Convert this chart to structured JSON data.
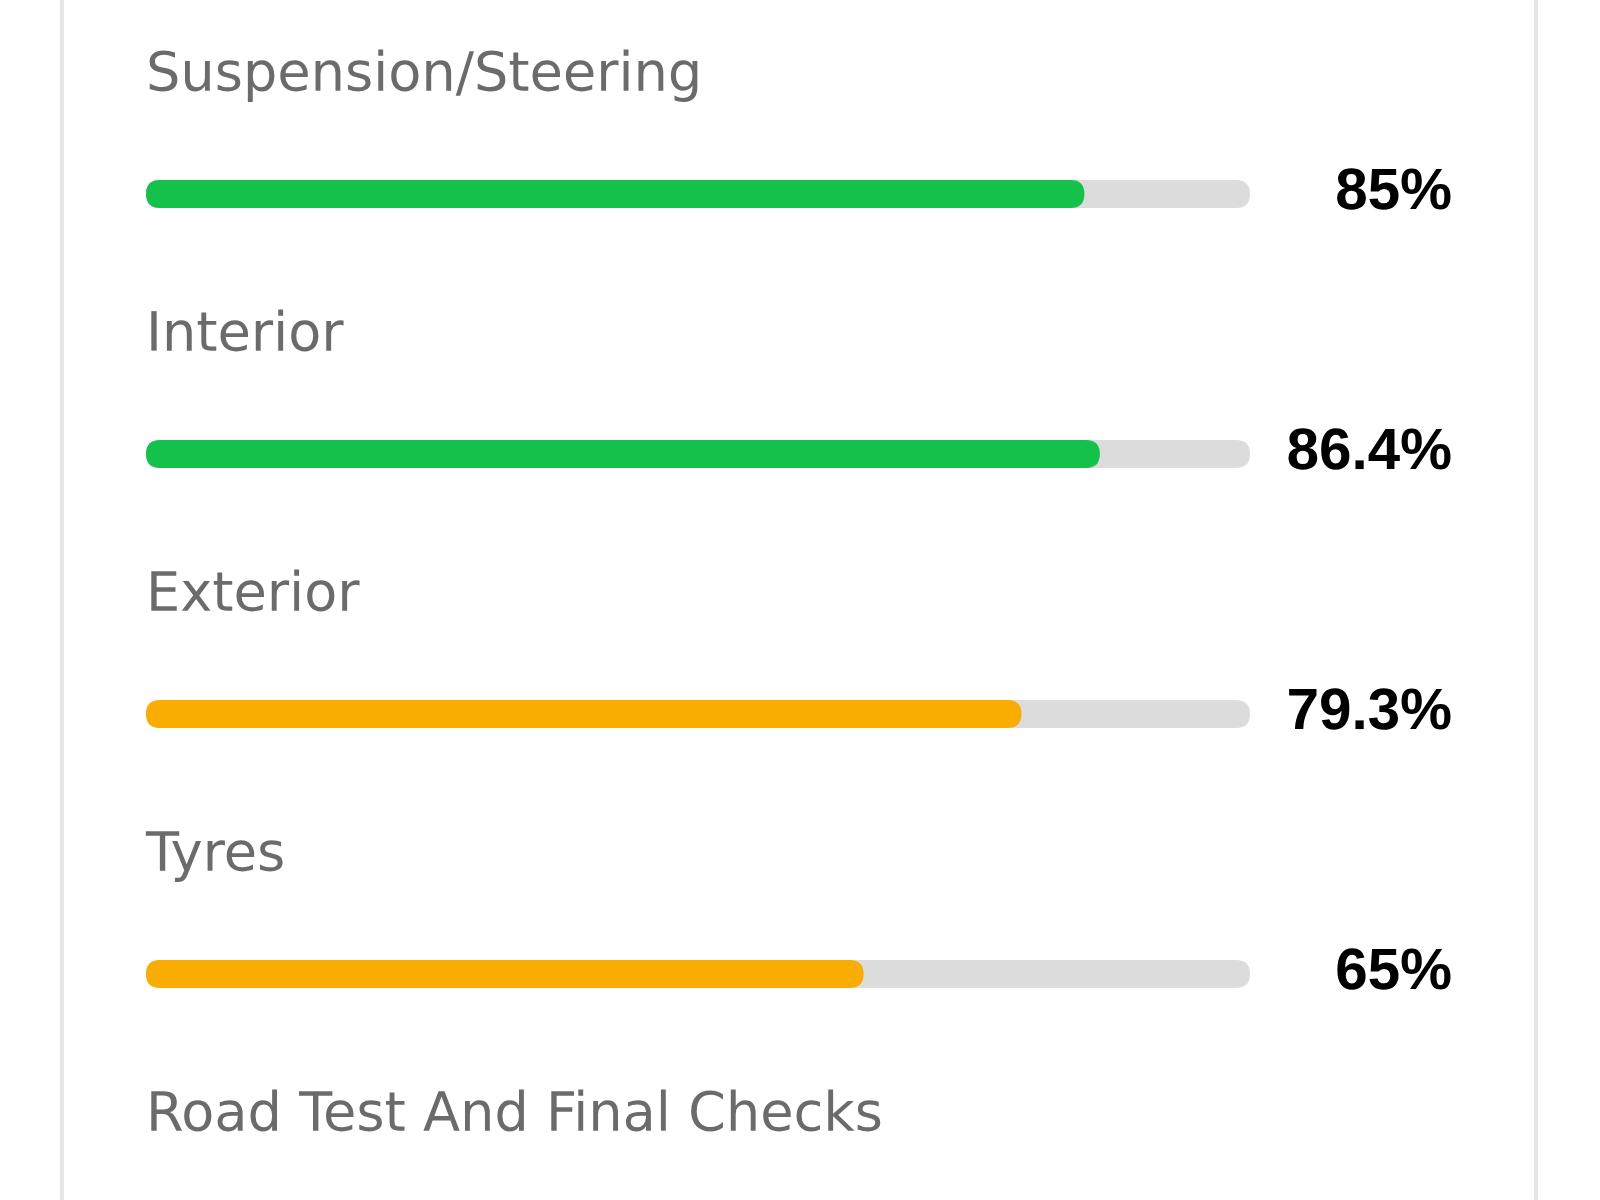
{
  "chart_data": {
    "type": "bar",
    "orientation": "horizontal",
    "categories": [
      "Suspension/Steering",
      "Interior",
      "Exterior",
      "Tyres",
      "Road Test And Final Checks"
    ],
    "values": [
      85,
      86.4,
      79.3,
      65,
      null
    ],
    "colors": [
      "#13c14b",
      "#13c14b",
      "#f9ad02",
      "#f9ad02",
      null
    ],
    "value_labels": [
      "85%",
      "86.4%",
      "79.3%",
      "65%",
      null
    ],
    "xlim": [
      0,
      100
    ]
  }
}
